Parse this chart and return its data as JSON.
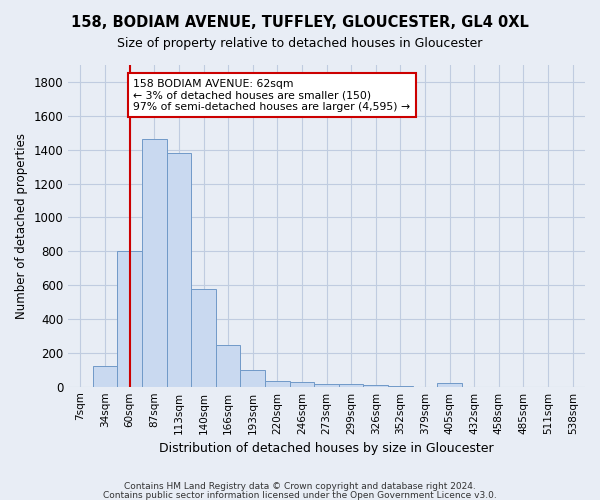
{
  "title1": "158, BODIAM AVENUE, TUFFLEY, GLOUCESTER, GL4 0XL",
  "title2": "Size of property relative to detached houses in Gloucester",
  "xlabel": "Distribution of detached houses by size in Gloucester",
  "ylabel": "Number of detached properties",
  "footnote1": "Contains HM Land Registry data © Crown copyright and database right 2024.",
  "footnote2": "Contains public sector information licensed under the Open Government Licence v3.0.",
  "categories": [
    "7sqm",
    "34sqm",
    "60sqm",
    "87sqm",
    "113sqm",
    "140sqm",
    "166sqm",
    "193sqm",
    "220sqm",
    "246sqm",
    "273sqm",
    "299sqm",
    "326sqm",
    "352sqm",
    "379sqm",
    "405sqm",
    "432sqm",
    "458sqm",
    "485sqm",
    "511sqm",
    "538sqm"
  ],
  "values": [
    0,
    120,
    800,
    1460,
    1380,
    575,
    245,
    100,
    35,
    25,
    15,
    15,
    10,
    5,
    0,
    20,
    0,
    0,
    0,
    0,
    0
  ],
  "bar_color": "#c9d9f0",
  "bar_edge_color": "#7099c8",
  "bar_edge_width": 0.7,
  "grid_color": "#c0cce0",
  "bg_color": "#e8edf5",
  "plot_bg_color": "#e8edf5",
  "vline_x": 2,
  "vline_color": "#cc0000",
  "annotation_text": "158 BODIAM AVENUE: 62sqm\n← 3% of detached houses are smaller (150)\n97% of semi-detached houses are larger (4,595) →",
  "annotation_box_color": "#ffffff",
  "annotation_box_edge": "#cc0000",
  "ylim": [
    0,
    1900
  ],
  "yticks": [
    0,
    200,
    400,
    600,
    800,
    1000,
    1200,
    1400,
    1600,
    1800
  ]
}
